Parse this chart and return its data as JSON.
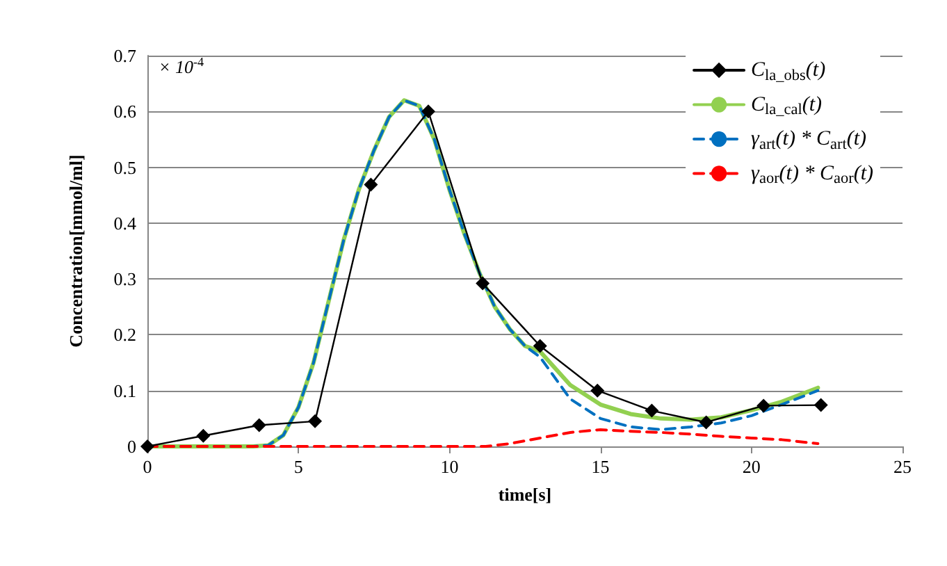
{
  "chart_data": {
    "type": "line",
    "xlabel": "time[s]",
    "ylabel": "Concentration[mmol/ml]",
    "annotations": [
      "× 10$^{-4}$"
    ],
    "xlim": [
      0,
      25
    ],
    "xticks": [
      0,
      5,
      10,
      15,
      20,
      25
    ],
    "ylim": [
      0,
      0.7
    ],
    "yticks": [
      0,
      0.1,
      0.2,
      0.3,
      0.4,
      0.5,
      0.6,
      0.7
    ],
    "grid": "y",
    "legend": "top right",
    "series": [
      {
        "name": "C$_{la_obs}$(t)",
        "color": "#000000",
        "marker": "diamond",
        "line_style": "solid",
        "x": [
          0,
          1.85,
          3.7,
          5.55,
          7.4,
          9.3,
          11.1,
          13.0,
          14.9,
          16.7,
          18.5,
          20.4,
          22.3
        ],
        "values": [
          0,
          0.019,
          0.038,
          0.045,
          0.469,
          0.6,
          0.292,
          0.18,
          0.1,
          0.064,
          0.043,
          0.073,
          0.074
        ]
      },
      {
        "name": "C$_{la_cal}$(t)",
        "color": "#92d050",
        "marker": "none",
        "line_style": "solid",
        "x": [
          0,
          3.5,
          4,
          4.5,
          5,
          5.5,
          6,
          6.5,
          7,
          7.5,
          8,
          8.5,
          9,
          9.5,
          10,
          10.5,
          11,
          11.5,
          12,
          12.5,
          13,
          14,
          15,
          16,
          17,
          18,
          19,
          20,
          21,
          22.2
        ],
        "values": [
          0,
          0,
          0.002,
          0.02,
          0.07,
          0.15,
          0.26,
          0.37,
          0.46,
          0.53,
          0.59,
          0.62,
          0.61,
          0.55,
          0.46,
          0.38,
          0.31,
          0.25,
          0.21,
          0.18,
          0.17,
          0.11,
          0.075,
          0.058,
          0.05,
          0.048,
          0.052,
          0.065,
          0.08,
          0.105
        ]
      },
      {
        "name": "γ$_{art}$(t) * C$_{art}$(t)",
        "color": "#0070c0",
        "marker": "none",
        "line_style": "dashed",
        "x": [
          0,
          3.5,
          4,
          4.5,
          5,
          5.5,
          6,
          6.5,
          7,
          7.5,
          8,
          8.5,
          9,
          9.5,
          10,
          10.5,
          11,
          11.5,
          12,
          12.5,
          13,
          14,
          15,
          16,
          17,
          18,
          19,
          20,
          21,
          22.2
        ],
        "values": [
          0,
          0,
          0.002,
          0.02,
          0.07,
          0.15,
          0.26,
          0.37,
          0.46,
          0.53,
          0.59,
          0.62,
          0.61,
          0.55,
          0.46,
          0.38,
          0.31,
          0.25,
          0.21,
          0.18,
          0.16,
          0.085,
          0.05,
          0.035,
          0.03,
          0.035,
          0.042,
          0.055,
          0.075,
          0.1
        ]
      },
      {
        "name": "γ$_{aor}$(t) * C$_{aor}$(t)",
        "color": "#ff0000",
        "marker": "none",
        "line_style": "dashed",
        "x": [
          0,
          11.2,
          12,
          13,
          14,
          15,
          16,
          17,
          18,
          19,
          20,
          21,
          22.2
        ],
        "values": [
          0,
          0,
          0.005,
          0.015,
          0.025,
          0.03,
          0.027,
          0.025,
          0.022,
          0.018,
          0.015,
          0.012,
          0.005
        ]
      }
    ]
  }
}
